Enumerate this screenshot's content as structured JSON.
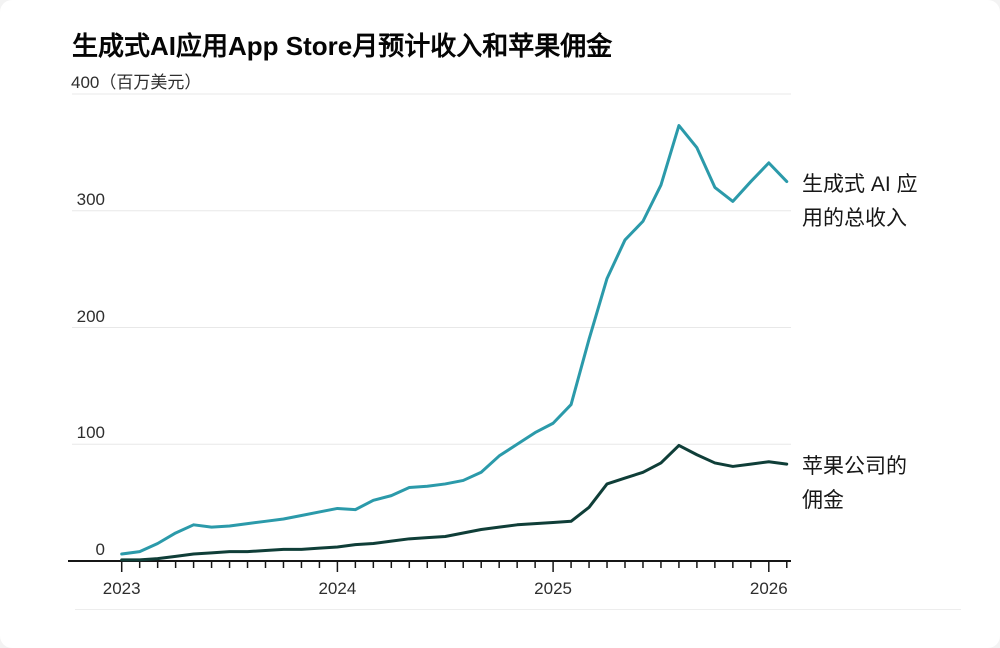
{
  "title": "生成式AI应用App Store月预计收入和苹果佣金",
  "y_axis_top_label": "400（百万美元）",
  "annotations": [
    {
      "line1": "生成式 AI 应",
      "line2": "用的总收入"
    },
    {
      "line1": "苹果公司的",
      "line2": "佣金"
    }
  ],
  "chart_data": {
    "type": "line",
    "title": "生成式AI应用App Store月预计收入和苹果佣金",
    "unit_label": "百万美元",
    "ylim": [
      0,
      400
    ],
    "y_ticks": [
      0,
      100,
      200,
      300,
      400
    ],
    "grid": true,
    "legend_position": "right-annotations",
    "x": [
      "2023-01",
      "2023-02",
      "2023-03",
      "2023-04",
      "2023-05",
      "2023-06",
      "2023-07",
      "2023-08",
      "2023-09",
      "2023-10",
      "2023-11",
      "2023-12",
      "2024-01",
      "2024-02",
      "2024-03",
      "2024-04",
      "2024-05",
      "2024-06",
      "2024-07",
      "2024-08",
      "2024-09",
      "2024-10",
      "2024-11",
      "2024-12",
      "2025-01",
      "2025-02",
      "2025-03",
      "2025-04",
      "2025-05",
      "2025-06",
      "2025-07",
      "2025-08",
      "2025-09",
      "2025-10",
      "2025-11",
      "2025-12",
      "2026-01",
      "2026-02"
    ],
    "x_tick_labels": [
      "2023",
      "2024",
      "2025",
      "2026"
    ],
    "series": [
      {
        "name": "生成式 AI 应用的总收入",
        "color": "#2b9aaa",
        "values": [
          6,
          8,
          15,
          24,
          31,
          29,
          30,
          32,
          34,
          36,
          39,
          42,
          45,
          44,
          52,
          56,
          63,
          64,
          66,
          69,
          76,
          90,
          100,
          110,
          118,
          134,
          190,
          242,
          275,
          291,
          322,
          373,
          354,
          320,
          308,
          325,
          341,
          325
        ]
      },
      {
        "name": "苹果公司的佣金",
        "color": "#0f3e38",
        "values": [
          1,
          1,
          2,
          4,
          6,
          7,
          8,
          8,
          9,
          10,
          10,
          11,
          12,
          14,
          15,
          17,
          19,
          20,
          21,
          24,
          27,
          29,
          31,
          32,
          33,
          34,
          46,
          66,
          71,
          76,
          84,
          99,
          91,
          84,
          81,
          83,
          85,
          83
        ]
      }
    ],
    "axis_color": "#161616",
    "grid_color": "#e8e8e8"
  }
}
